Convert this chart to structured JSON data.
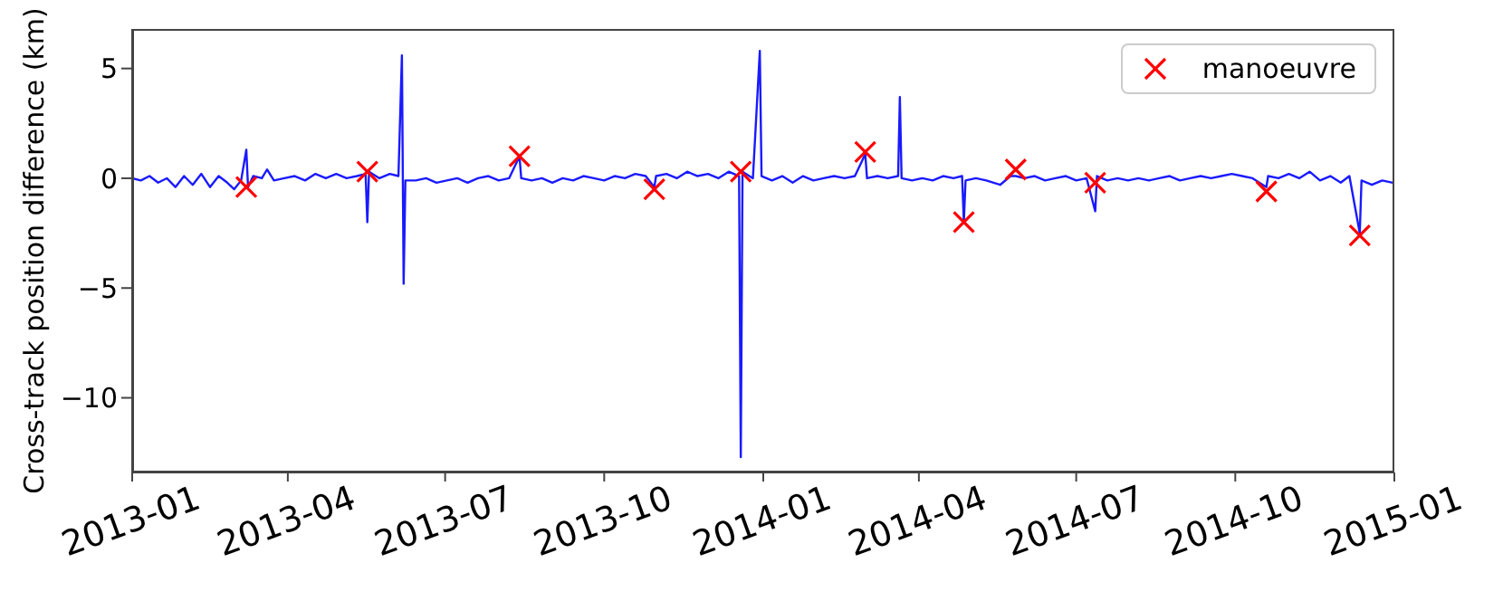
{
  "chart_data": {
    "type": "line",
    "ylabel": "Cross-track position difference (km)",
    "xlim": [
      "2013-01-01",
      "2015-01-01"
    ],
    "xticks": [
      "2013-01",
      "2013-04",
      "2013-07",
      "2013-10",
      "2014-01",
      "2014-04",
      "2014-07",
      "2014-10",
      "2015-01"
    ],
    "ylim": [
      -13.4,
      6.8
    ],
    "yticks": [
      {
        "value": -10,
        "label": "−10"
      },
      {
        "value": -5,
        "label": "−5"
      },
      0,
      5
    ],
    "grid": false,
    "legend": "top right",
    "series": [
      {
        "color": "#1a1aff",
        "marker": "none",
        "line_style": "solid",
        "x": [
          "2013-01-01",
          "2013-01-06",
          "2013-01-11",
          "2013-01-16",
          "2013-01-21",
          "2013-01-26",
          "2013-01-31",
          "2013-02-05",
          "2013-02-10",
          "2013-02-15",
          "2013-02-20",
          "2013-02-25",
          "2013-03-01",
          "2013-03-05",
          "2013-03-08",
          "2013-03-09",
          "2013-03-12",
          "2013-03-17",
          "2013-03-20",
          "2013-03-24",
          "2013-03-30",
          "2013-04-05",
          "2013-04-11",
          "2013-04-17",
          "2013-04-23",
          "2013-04-29",
          "2013-05-05",
          "2013-05-11",
          "2013-05-16",
          "2013-05-17",
          "2013-05-18",
          "2013-05-24",
          "2013-05-30",
          "2013-06-04",
          "2013-06-06",
          "2013-06-07",
          "2013-06-08",
          "2013-06-14",
          "2013-06-20",
          "2013-06-26",
          "2013-07-02",
          "2013-07-08",
          "2013-07-14",
          "2013-07-20",
          "2013-07-26",
          "2013-08-01",
          "2013-08-07",
          "2013-08-13",
          "2013-08-14",
          "2013-08-20",
          "2013-08-26",
          "2013-09-01",
          "2013-09-07",
          "2013-09-13",
          "2013-09-19",
          "2013-09-25",
          "2013-10-01",
          "2013-10-07",
          "2013-10-13",
          "2013-10-19",
          "2013-10-25",
          "2013-10-30",
          "2013-10-31",
          "2013-11-06",
          "2013-11-12",
          "2013-11-18",
          "2013-11-24",
          "2013-11-30",
          "2013-12-06",
          "2013-12-12",
          "2013-12-18",
          "2013-12-19",
          "2013-12-20",
          "2013-12-26",
          "2013-12-30",
          "2013-12-31",
          "2014-01-06",
          "2014-01-12",
          "2014-01-18",
          "2014-01-24",
          "2014-01-30",
          "2014-02-05",
          "2014-02-11",
          "2014-02-17",
          "2014-02-23",
          "2014-03-01",
          "2014-03-02",
          "2014-03-08",
          "2014-03-14",
          "2014-03-20",
          "2014-03-21",
          "2014-03-22",
          "2014-03-28",
          "2014-04-03",
          "2014-04-09",
          "2014-04-15",
          "2014-04-21",
          "2014-04-26",
          "2014-04-27",
          "2014-04-28",
          "2014-05-04",
          "2014-05-10",
          "2014-05-18",
          "2014-05-24",
          "2014-05-27",
          "2014-06-01",
          "2014-06-07",
          "2014-06-13",
          "2014-06-19",
          "2014-06-25",
          "2014-07-01",
          "2014-07-07",
          "2014-07-12",
          "2014-07-13",
          "2014-07-19",
          "2014-07-25",
          "2014-07-31",
          "2014-08-06",
          "2014-08-12",
          "2014-08-18",
          "2014-08-24",
          "2014-08-30",
          "2014-09-05",
          "2014-09-11",
          "2014-09-17",
          "2014-09-23",
          "2014-09-29",
          "2014-10-05",
          "2014-10-11",
          "2014-10-19",
          "2014-10-20",
          "2014-10-26",
          "2014-11-01",
          "2014-11-07",
          "2014-11-13",
          "2014-11-19",
          "2014-11-25",
          "2014-12-01",
          "2014-12-06",
          "2014-12-12",
          "2014-12-13",
          "2014-12-19",
          "2014-12-25",
          "2014-12-31"
        ],
        "values": [
          0.0,
          -0.1,
          0.1,
          -0.2,
          0.0,
          -0.4,
          0.1,
          -0.3,
          0.2,
          -0.4,
          0.1,
          -0.2,
          -0.5,
          -0.1,
          1.3,
          -0.4,
          0.1,
          0.0,
          0.4,
          -0.1,
          0.0,
          0.1,
          -0.1,
          0.2,
          0.0,
          0.2,
          0.0,
          0.1,
          0.2,
          -2.0,
          0.3,
          0.0,
          0.2,
          0.1,
          5.6,
          -4.8,
          -0.1,
          -0.1,
          0.0,
          -0.2,
          -0.1,
          0.0,
          -0.2,
          0.0,
          0.1,
          -0.1,
          0.0,
          1.0,
          0.0,
          -0.1,
          0.0,
          -0.2,
          0.0,
          -0.1,
          0.1,
          0.0,
          -0.1,
          0.1,
          0.0,
          0.2,
          0.1,
          -0.4,
          0.1,
          0.2,
          0.0,
          0.3,
          0.1,
          0.2,
          0.0,
          0.3,
          0.1,
          -12.7,
          0.3,
          0.0,
          5.8,
          0.1,
          -0.1,
          0.1,
          -0.2,
          0.1,
          -0.1,
          0.0,
          0.1,
          0.0,
          0.1,
          1.1,
          0.0,
          0.1,
          0.0,
          0.1,
          3.7,
          0.0,
          -0.1,
          0.0,
          -0.1,
          0.1,
          0.0,
          0.1,
          -2.0,
          -0.1,
          0.0,
          -0.1,
          -0.3,
          0.1,
          0.1,
          0.0,
          0.1,
          -0.1,
          0.0,
          0.1,
          -0.1,
          0.0,
          -1.5,
          0.1,
          -0.1,
          0.0,
          -0.1,
          0.0,
          -0.1,
          0.0,
          0.1,
          -0.1,
          0.0,
          0.1,
          0.0,
          0.1,
          0.2,
          0.1,
          0.0,
          -0.4,
          0.1,
          0.0,
          0.2,
          0.0,
          0.3,
          -0.1,
          0.1,
          -0.2,
          0.1,
          -2.5,
          -0.1,
          -0.3,
          -0.1,
          -0.2
        ]
      },
      {
        "type": "scatter",
        "name": "manoeuvre",
        "color": "#ff0000",
        "marker": "cross",
        "x": [
          "2013-03-08",
          "2013-05-17",
          "2013-08-13",
          "2013-10-30",
          "2013-12-19",
          "2014-03-01",
          "2014-04-27",
          "2014-05-27",
          "2014-07-12",
          "2014-10-19",
          "2014-12-12"
        ],
        "values": [
          -0.4,
          0.3,
          1.0,
          -0.5,
          0.3,
          1.2,
          -2.0,
          0.4,
          -0.2,
          -0.6,
          -2.6
        ]
      }
    ]
  }
}
